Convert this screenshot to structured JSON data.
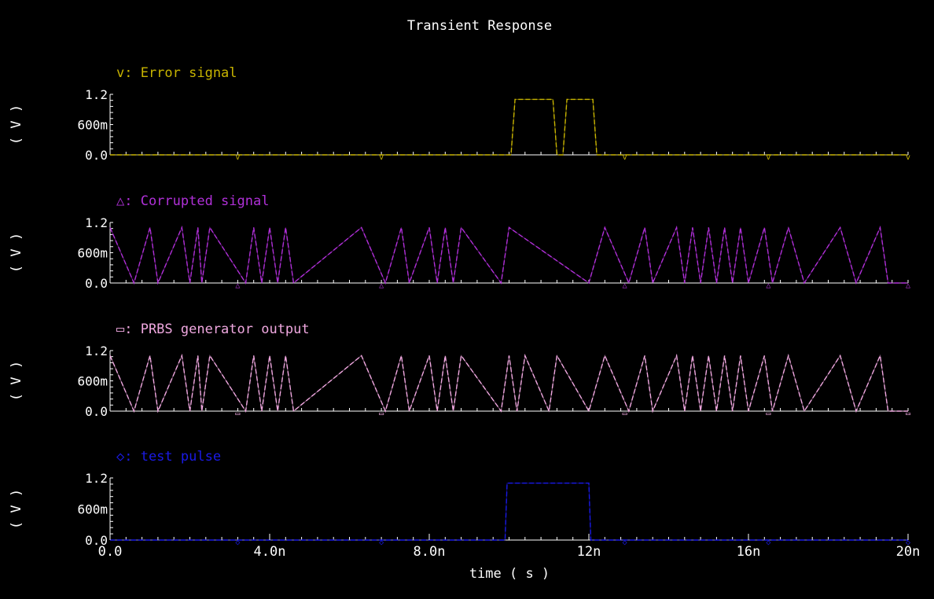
{
  "title": "Transient Response",
  "colors": {
    "background": "#000000",
    "axis": "#ffffff",
    "title": "#ffffff"
  },
  "chart_data": {
    "type": "line",
    "title": "Transient Response",
    "xlabel": "time ( s )",
    "ylabel": "( V )",
    "xlim": [
      0,
      20
    ],
    "x_unit": "ns",
    "x_ticks": [
      "0.0",
      "4.0n",
      "8.0n",
      "12n",
      "16n",
      "20n"
    ],
    "y_ticks": [
      "0.0",
      "600m",
      "1.2"
    ],
    "ylim": [
      0,
      1.2
    ],
    "grid": false,
    "series": [
      {
        "name": "Error signal",
        "label": "v: Error signal",
        "marker": "v",
        "color": "#c8b400",
        "x": [
          0,
          10.05,
          10.15,
          11.1,
          11.2,
          11.35,
          11.45,
          12.1,
          12.2,
          20
        ],
        "y": [
          0,
          0,
          1.1,
          1.1,
          0,
          0,
          1.1,
          1.1,
          0,
          0
        ]
      },
      {
        "name": "Corrupted signal",
        "label": "△: Corrupted signal",
        "marker": "△",
        "color": "#b030d8",
        "x": [
          0,
          0.6,
          1.0,
          1.2,
          1.8,
          2.0,
          2.2,
          2.3,
          2.5,
          3.4,
          3.6,
          3.8,
          4.0,
          4.2,
          4.4,
          4.6,
          6.3,
          6.9,
          7.3,
          7.5,
          8.0,
          8.2,
          8.4,
          8.6,
          8.8,
          9.8,
          10.0,
          12.0,
          12.4,
          13.0,
          13.4,
          13.6,
          14.2,
          14.4,
          14.6,
          14.8,
          15.0,
          15.2,
          15.4,
          15.6,
          15.8,
          16.0,
          16.4,
          16.6,
          17.0,
          17.4,
          18.3,
          18.7,
          19.3,
          19.5,
          20
        ],
        "y": [
          1.1,
          0,
          1.1,
          0,
          1.1,
          0,
          1.1,
          0,
          1.1,
          0,
          1.1,
          0,
          1.1,
          0,
          1.1,
          0,
          1.1,
          0,
          1.1,
          0,
          1.1,
          0,
          1.1,
          0,
          1.1,
          0,
          1.1,
          0,
          1.1,
          0,
          1.1,
          0,
          1.1,
          0,
          1.1,
          0,
          1.1,
          0,
          1.1,
          0,
          1.1,
          0,
          1.1,
          0,
          1.1,
          0,
          1.1,
          0,
          1.1,
          0,
          0
        ]
      },
      {
        "name": "PRBS generator output",
        "label": "▭: PRBS generator output",
        "marker": "▭",
        "color": "#f0a8e0",
        "x": [
          0,
          0.6,
          1.0,
          1.2,
          1.8,
          2.0,
          2.2,
          2.3,
          2.5,
          3.4,
          3.6,
          3.8,
          4.0,
          4.2,
          4.4,
          4.6,
          6.3,
          6.9,
          7.3,
          7.5,
          8.0,
          8.2,
          8.4,
          8.6,
          8.8,
          9.8,
          10.0,
          10.2,
          10.4,
          11.0,
          11.2,
          12.0,
          12.4,
          13.0,
          13.4,
          13.6,
          14.2,
          14.4,
          14.6,
          14.8,
          15.0,
          15.2,
          15.4,
          15.6,
          15.8,
          16.0,
          16.4,
          16.6,
          17.0,
          17.4,
          18.3,
          18.7,
          19.3,
          19.5,
          20
        ],
        "y": [
          1.1,
          0,
          1.1,
          0,
          1.1,
          0,
          1.1,
          0,
          1.1,
          0,
          1.1,
          0,
          1.1,
          0,
          1.1,
          0,
          1.1,
          0,
          1.1,
          0,
          1.1,
          0,
          1.1,
          0,
          1.1,
          0,
          1.1,
          0,
          1.1,
          0,
          1.1,
          0,
          1.1,
          0,
          1.1,
          0,
          1.1,
          0,
          1.1,
          0,
          1.1,
          0,
          1.1,
          0,
          1.1,
          0,
          1.1,
          0,
          1.1,
          0,
          1.1,
          0,
          1.1,
          0,
          0
        ]
      },
      {
        "name": "test pulse",
        "label": "◇: test pulse",
        "marker": "◇",
        "color": "#1a1ae6",
        "x": [
          0,
          9.9,
          9.95,
          12.0,
          12.05,
          20
        ],
        "y": [
          0,
          0,
          1.1,
          1.1,
          0,
          0
        ]
      }
    ]
  }
}
